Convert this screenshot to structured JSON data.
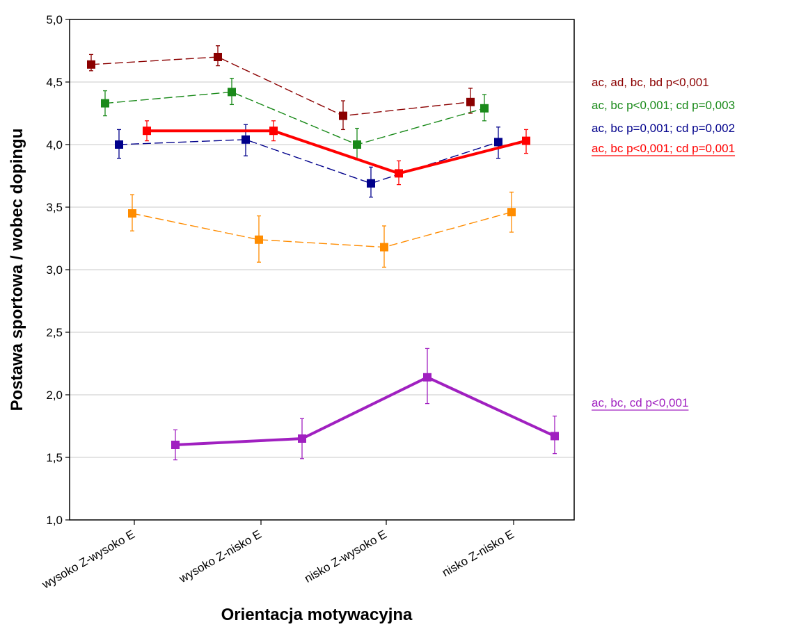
{
  "chart_data": {
    "type": "line",
    "title": "",
    "xlabel": "Orientacja motywacyjna",
    "ylabel": "Postawa sportowa / wobec dopingu",
    "ylim": [
      1.0,
      5.0
    ],
    "yticks": [
      "1,0",
      "1,5",
      "2,0",
      "2,5",
      "3,0",
      "3,5",
      "4,0",
      "4,5",
      "5,0"
    ],
    "categories": [
      "wysoko Z-wysoko E",
      "wysoko Z-nisko E",
      "nisko Z-wysoko E",
      "nisko Z-nisko E"
    ],
    "grid": "horizontal",
    "legend": "none",
    "series": [
      {
        "color": "#8b0000",
        "style": "dashed",
        "values": [
          4.64,
          4.7,
          4.23,
          4.34
        ],
        "err_low": [
          4.59,
          4.63,
          4.12,
          4.25
        ],
        "err_high": [
          4.72,
          4.79,
          4.35,
          4.45
        ]
      },
      {
        "color": "#1a8a1a",
        "style": "dashed",
        "values": [
          4.33,
          4.42,
          4.0,
          4.29
        ],
        "err_low": [
          4.23,
          4.32,
          3.88,
          4.19
        ],
        "err_high": [
          4.43,
          4.53,
          4.13,
          4.4
        ]
      },
      {
        "color": "#00008b",
        "style": "dashed",
        "values": [
          4.0,
          4.04,
          3.69,
          4.02
        ],
        "err_low": [
          3.89,
          3.91,
          3.58,
          3.89
        ],
        "err_high": [
          4.12,
          4.16,
          3.82,
          4.14
        ]
      },
      {
        "color": "#ff0000",
        "style": "solid",
        "values": [
          4.11,
          4.11,
          3.77,
          4.03
        ],
        "err_low": [
          4.03,
          4.03,
          3.68,
          3.93
        ],
        "err_high": [
          4.19,
          4.19,
          3.87,
          4.12
        ]
      },
      {
        "color": "#ff8c00",
        "style": "dashed",
        "values": [
          3.45,
          3.24,
          3.18,
          3.46
        ],
        "err_low": [
          3.31,
          3.06,
          3.02,
          3.3
        ],
        "err_high": [
          3.6,
          3.43,
          3.35,
          3.62
        ]
      },
      {
        "color": "#a020c0",
        "style": "solid",
        "values": [
          1.6,
          1.65,
          2.14,
          1.67
        ],
        "err_low": [
          1.48,
          1.49,
          1.93,
          1.53
        ],
        "err_high": [
          1.72,
          1.81,
          2.37,
          1.83
        ]
      }
    ],
    "annotations": [
      {
        "text": "ac, ad, bc, bd p<0,001",
        "color": "#8b0000",
        "underline": false
      },
      {
        "text": "ac, bc p<0,001; cd p=0,003",
        "color": "#1a8a1a",
        "underline": false
      },
      {
        "text": "ac, bc p=0,001; cd p=0,002",
        "color": "#00008b",
        "underline": false
      },
      {
        "text": "ac, bc p<0,001; cd p=0,001",
        "color": "#ff0000",
        "underline": true
      },
      {
        "text": "ac, bc, cd p<0,001",
        "color": "#a020c0",
        "underline": true
      }
    ]
  }
}
